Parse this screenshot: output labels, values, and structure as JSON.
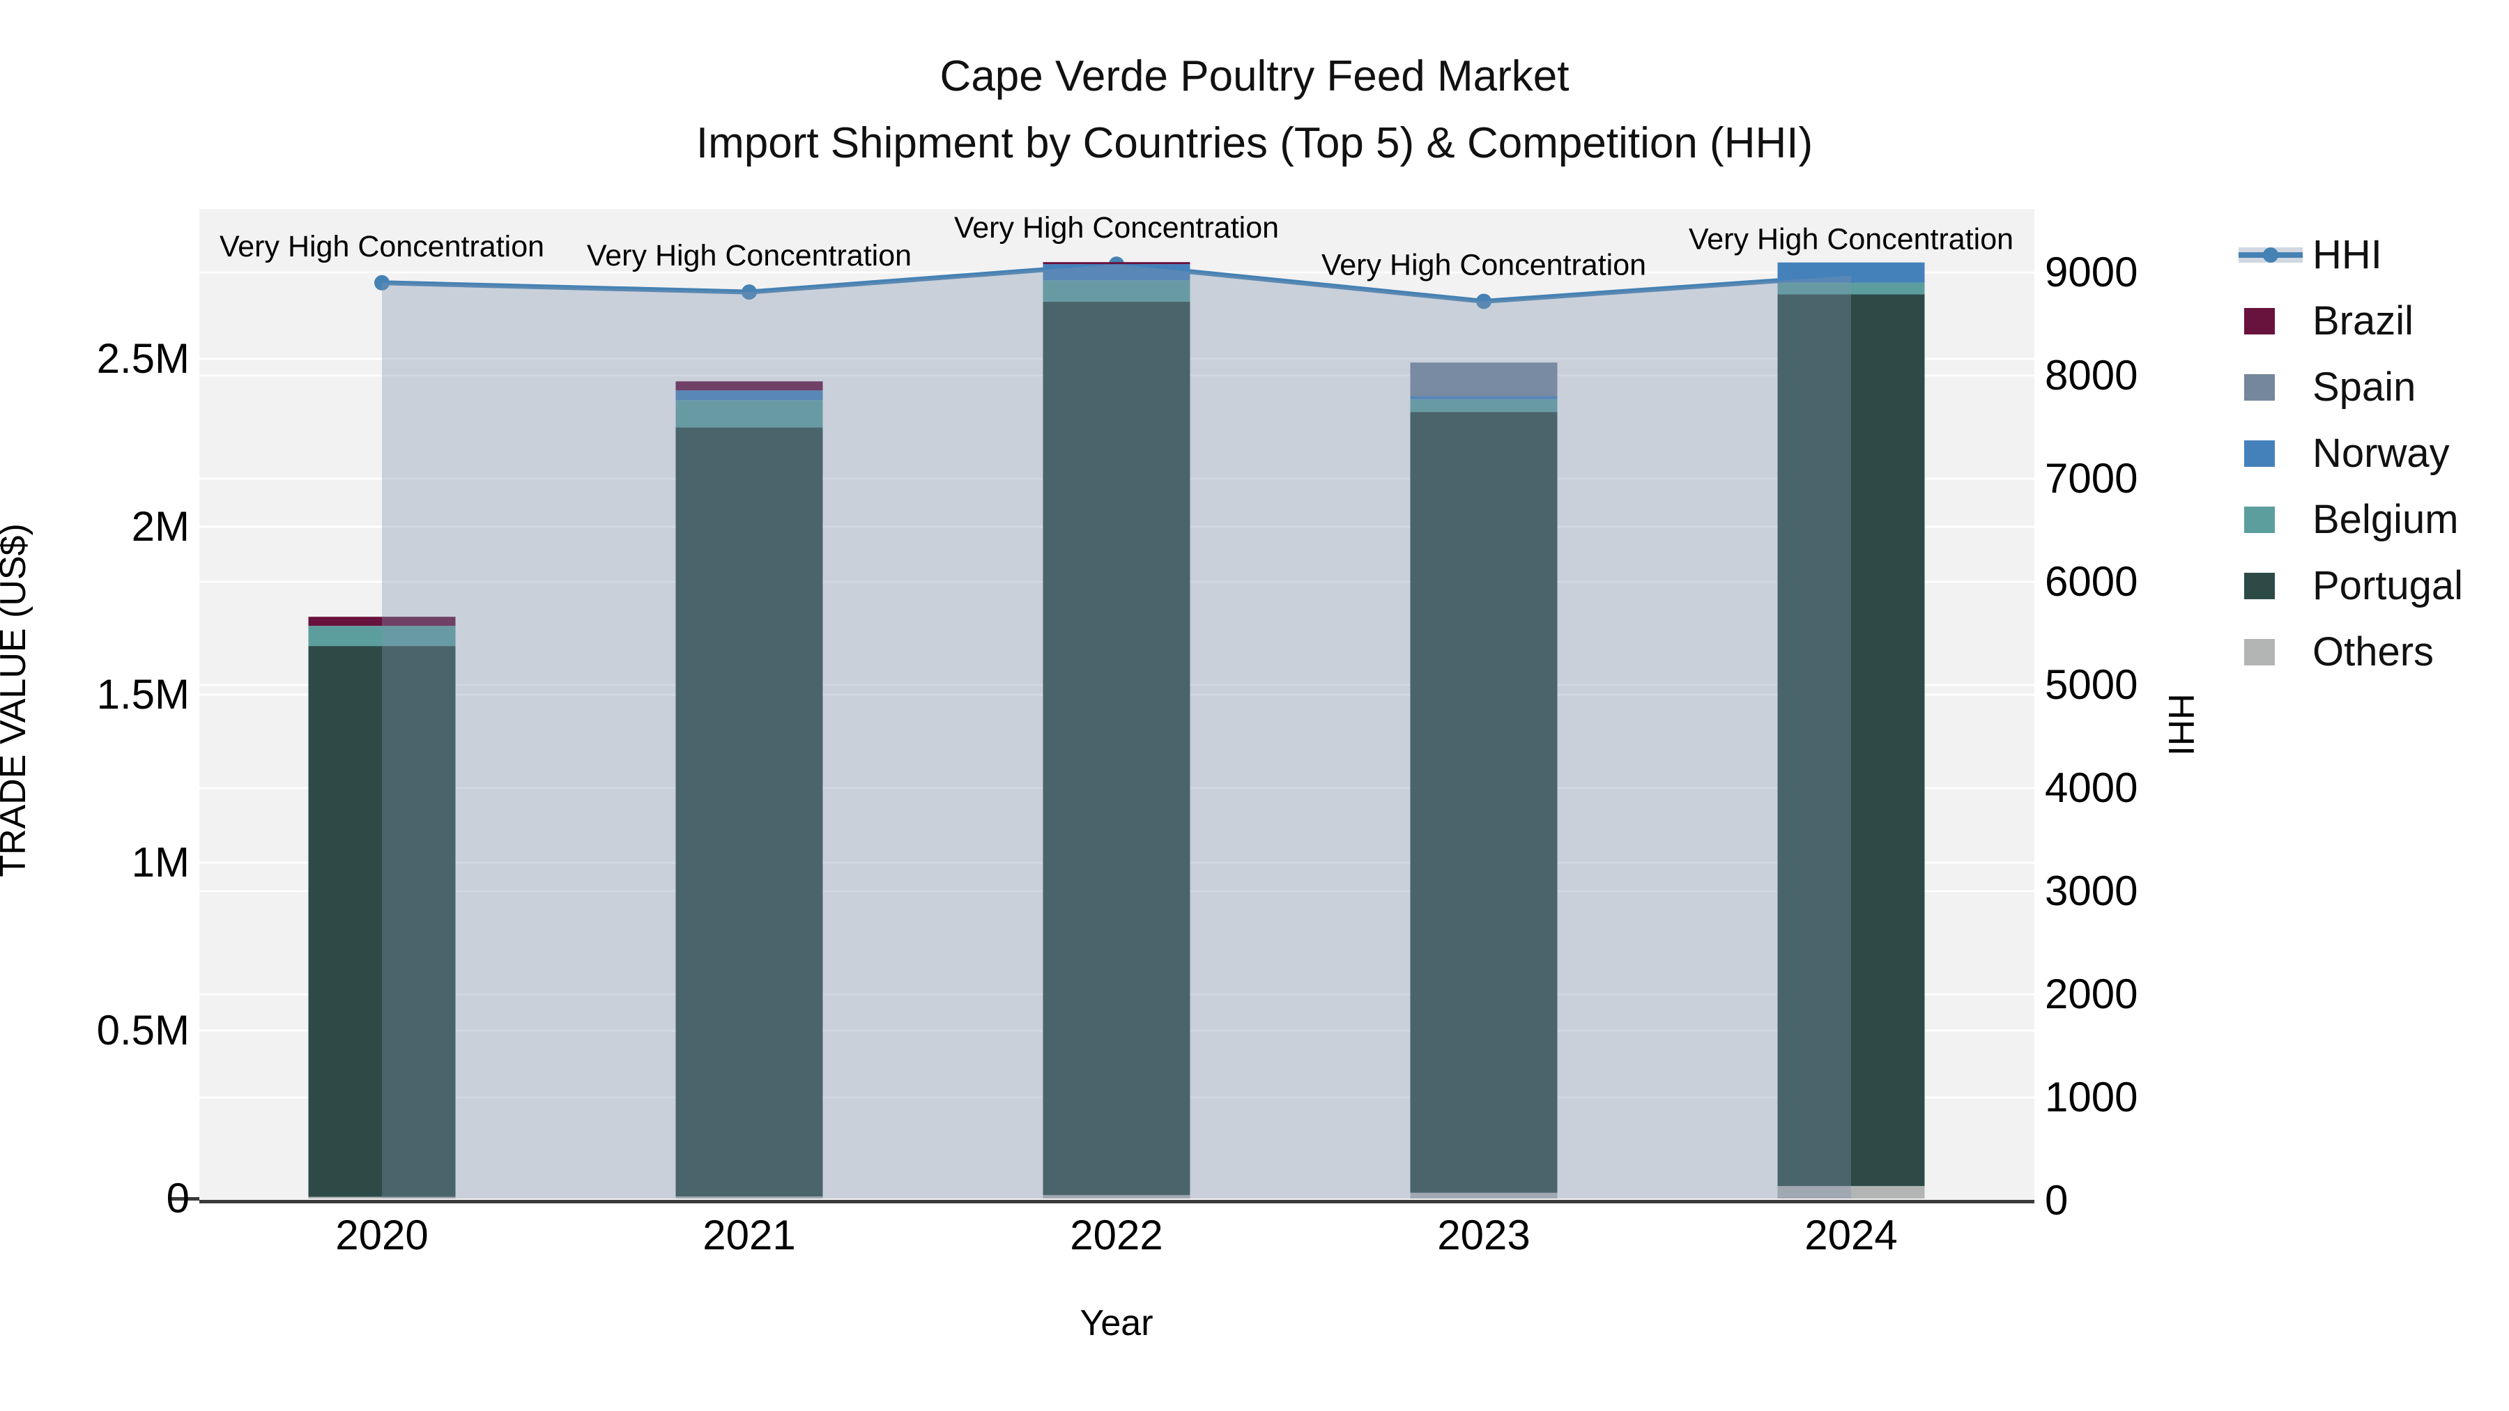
{
  "title": "Cape Verde Poultry Feed Market",
  "subtitle": "Import Shipment by Countries (Top 5) & Competition (HHI)",
  "colors": {
    "plot_bg": "#f3f2f2",
    "gridline": "#ffffff",
    "axis_line": "#3a3a3a",
    "text": "#000000",
    "hhi_line": "#4682b4",
    "hhi_area_fill": "rgba(128,147,175,0.36)"
  },
  "chart_data": {
    "type": "bar+line",
    "title": "Cape Verde Poultry Feed Market",
    "subtitle": "Import Shipment by Countries (Top 5) & Competition (HHI)",
    "categories": [
      "2020",
      "2021",
      "2022",
      "2023",
      "2024"
    ],
    "xlabel": "Year",
    "unit": "million US$",
    "stack_bottom_to_top": [
      "Others",
      "Portugal",
      "Belgium",
      "Norway",
      "Spain",
      "Brazil"
    ],
    "series": [
      {
        "name": "Brazil",
        "color": "#68123e",
        "values": [
          0.027,
          0.027,
          0.006,
          0,
          0
        ]
      },
      {
        "name": "Spain",
        "color": "#75879b",
        "values": [
          0,
          0,
          0,
          0.1,
          0
        ]
      },
      {
        "name": "Norway",
        "color": "#4481bb",
        "values": [
          0,
          0.029,
          0.048,
          0.01,
          0.06
        ]
      },
      {
        "name": "Belgium",
        "color": "#5c9e9e",
        "values": [
          0.06,
          0.081,
          0.064,
          0.037,
          0.035
        ]
      },
      {
        "name": "Portugal",
        "color": "#2d4a47",
        "values": [
          1.64,
          2.29,
          2.66,
          2.325,
          2.655
        ]
      },
      {
        "name": "Others",
        "color": "#b2b5b4",
        "values": [
          0.005,
          0.006,
          0.01,
          0.017,
          0.037
        ]
      }
    ],
    "bar_totals_musd": [
      1.73,
      2.43,
      2.79,
      2.49,
      2.79
    ],
    "line_series": {
      "name": "HHI",
      "color": "#4682b4",
      "area_fill": "rgba(128,147,175,0.36)",
      "values": [
        8900,
        8810,
        9080,
        8720,
        8970
      ]
    },
    "annotations": [
      "Very High Concentration",
      "Very High Concentration",
      "Very High Concentration",
      "Very High Concentration",
      "Very High Concentration"
    ],
    "y_left": {
      "label": "TRADE VALUE (US$)",
      "ticks": [
        "0",
        "0.5M",
        "1M",
        "1.5M",
        "2M",
        "2.5M"
      ],
      "tick_values": [
        0,
        0.5,
        1,
        1.5,
        2,
        2.5
      ],
      "range_musd": [
        0,
        2.95
      ]
    },
    "y_right": {
      "label": "HHI",
      "ticks": [
        "0",
        "1000",
        "2000",
        "3000",
        "4000",
        "5000",
        "6000",
        "7000",
        "8000",
        "9000"
      ],
      "tick_values": [
        0,
        1000,
        2000,
        3000,
        4000,
        5000,
        6000,
        7000,
        8000,
        9000
      ],
      "range": [
        0,
        9600
      ]
    },
    "legend_order": [
      "HHI",
      "Brazil",
      "Spain",
      "Norway",
      "Belgium",
      "Portugal",
      "Others"
    ],
    "grid": true,
    "legend_position": "right"
  }
}
